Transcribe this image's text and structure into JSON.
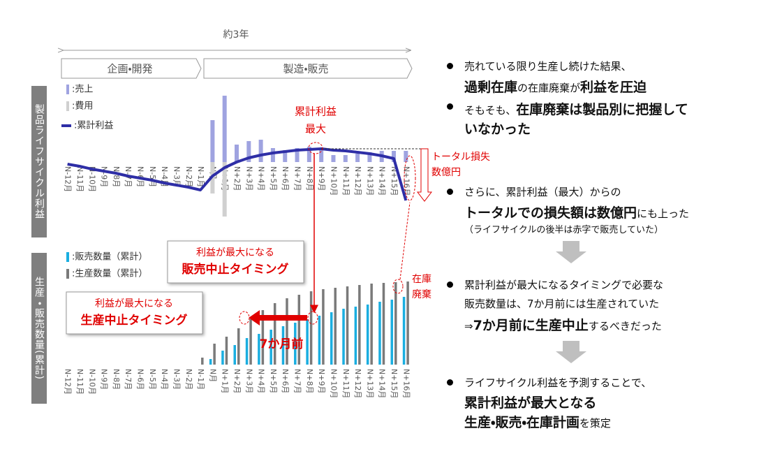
{
  "header": {
    "duration": "約3年",
    "phase1": "企画・開発",
    "phase2": "製造・販売"
  },
  "chart_data": [
    {
      "type": "bar",
      "ylabel": "製品ライフサイクル利益",
      "categories": [
        "N-12月",
        "N-11月",
        "N-10月",
        "N-9月",
        "N-8月",
        "N-7月",
        "N-6月",
        "N-5月",
        "N-4月",
        "N-3月",
        "N-2月",
        "N-1月",
        "N月",
        "N+1月",
        "N+2月",
        "N+3月",
        "N+4月",
        "N+5月",
        "N+6月",
        "N+7月",
        "N+8月",
        "N+9月",
        "N+10月",
        "N+11月",
        "N+12月",
        "N+13月",
        "N+14月",
        "N+15月",
        "N+16月"
      ],
      "ylim": [
        -100,
        100
      ],
      "series": [
        {
          "name": ":売上",
          "type": "bar",
          "color": "#9fa3e0",
          "values": [
            null,
            null,
            null,
            null,
            null,
            null,
            null,
            null,
            null,
            null,
            null,
            null,
            60,
            95,
            25,
            30,
            32,
            20,
            17,
            20,
            22,
            20,
            10,
            10,
            12,
            14,
            16,
            16,
            16
          ]
        },
        {
          "name": ":費用",
          "type": "bar",
          "color": "#d0d0d0",
          "values": [
            null,
            null,
            null,
            null,
            null,
            null,
            null,
            null,
            null,
            null,
            null,
            null,
            -45,
            -78,
            null,
            null,
            null,
            null,
            null,
            null,
            null,
            null,
            null,
            null,
            null,
            null,
            null,
            null,
            null
          ]
        },
        {
          "name": ":累計利益",
          "type": "line",
          "color": "#2e2ea6",
          "values": [
            -3,
            -6,
            -10,
            -13,
            -16,
            -20,
            -23,
            -26,
            -30,
            -33,
            -36,
            -40,
            -20,
            -8,
            0,
            6,
            10,
            13,
            15,
            17,
            18,
            19,
            17,
            16,
            14,
            12,
            9,
            5,
            -55
          ]
        }
      ]
    },
    {
      "type": "bar",
      "ylabel": "生産・販売数量(累計)",
      "categories": [
        "N-12月",
        "N-11月",
        "N-10月",
        "N-9月",
        "N-8月",
        "N-7月",
        "N-6月",
        "N-5月",
        "N-4月",
        "N-3月",
        "N-2月",
        "N-1月",
        "N月",
        "N+1月",
        "N+2月",
        "N+3月",
        "N+4月",
        "N+5月",
        "N+6月",
        "N+7月",
        "N+8月",
        "N+9月",
        "N+10月",
        "N+11月",
        "N+12月",
        "N+13月",
        "N+14月",
        "N+15月",
        "N+16月"
      ],
      "ylim": [
        0,
        130
      ],
      "series": [
        {
          "name": ":販売数量（累計）",
          "type": "bar",
          "color": "#1aaee0",
          "values": [
            null,
            null,
            null,
            null,
            null,
            null,
            null,
            null,
            null,
            null,
            null,
            null,
            8,
            20,
            28,
            38,
            44,
            50,
            55,
            60,
            65,
            70,
            75,
            80,
            83,
            86,
            90,
            93,
            97
          ]
        },
        {
          "name": ":生産数量（累計）",
          "type": "bar",
          "color": "#7a7a7a",
          "values": [
            null,
            null,
            null,
            null,
            null,
            null,
            null,
            null,
            null,
            null,
            null,
            10,
            30,
            40,
            52,
            65,
            78,
            88,
            95,
            100,
            105,
            108,
            110,
            112,
            114,
            116,
            117,
            118,
            119
          ]
        }
      ]
    }
  ],
  "annotations": {
    "profit_max": [
      "累計利益",
      "最大"
    ],
    "total_loss": [
      "トータル損失",
      "数億円"
    ],
    "inventory": [
      "在庫",
      "廃棄"
    ],
    "sales_stop": [
      "利益が最大になる",
      "販売中止タイミング"
    ],
    "production_stop": [
      "利益が最大になる",
      "生産中止タイミング"
    ],
    "months_before": "7か月前"
  },
  "bullets": [
    [
      [
        {
          "text": "売れている限り生産し続けた結果、",
          "style": "normal"
        }
      ],
      [
        {
          "text": "過剰在庫",
          "style": "bold"
        },
        {
          "text": "の在庫廃棄が",
          "style": "normal"
        },
        {
          "text": "利益を圧迫",
          "style": "bold"
        }
      ]
    ],
    [
      [
        {
          "text": "そもそも、",
          "style": "normal"
        },
        {
          "text": "在庫廃棄は製品別に把握して",
          "style": "bold"
        }
      ],
      [
        {
          "text": "いなかった",
          "style": "bold"
        }
      ]
    ],
    [
      [
        {
          "text": "さらに、累計利益（最大）からの",
          "style": "normal"
        }
      ],
      [
        {
          "text": "トータルでの損失額は数億円",
          "style": "bold"
        },
        {
          "text": "にも上った",
          "style": "normal"
        }
      ],
      [
        {
          "text": "（ライフサイクルの後半は赤字で販売していた）",
          "style": "small"
        }
      ]
    ],
    [
      [
        {
          "text": "累計利益が最大になるタイミングで必要な",
          "style": "normal"
        }
      ],
      [
        {
          "text": "販売数量は、7か月前には生産されていた",
          "style": "normal"
        }
      ],
      [
        {
          "text": "⇒",
          "style": "normal"
        },
        {
          "text": "7か月前に生産中止",
          "style": "bold"
        },
        {
          "text": "するべきだった",
          "style": "normal"
        }
      ]
    ],
    [
      [
        {
          "text": "ライフサイクル利益を予測することで、",
          "style": "normal"
        }
      ],
      [
        {
          "text": "累計利益が最大となる",
          "style": "bold"
        }
      ],
      [
        {
          "text": "生産・販売・在庫計画",
          "style": "bold"
        },
        {
          "text": "を策定",
          "style": "normal"
        }
      ]
    ]
  ]
}
